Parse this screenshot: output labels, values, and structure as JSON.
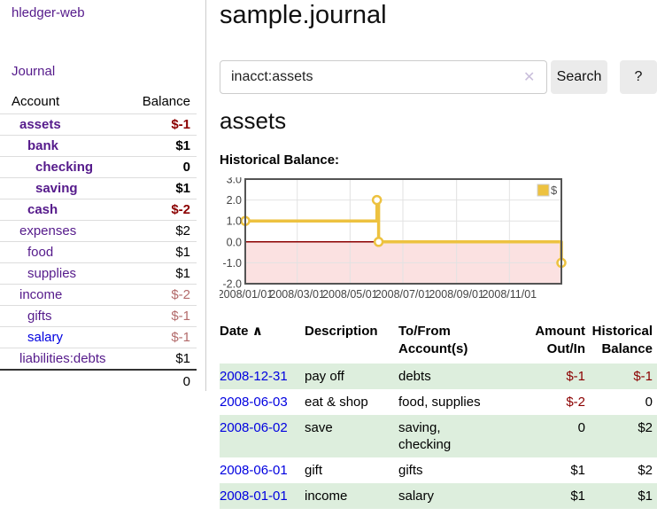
{
  "app": {
    "title": "hledger-web",
    "nav_journal": "Journal"
  },
  "sidebar": {
    "account_table": {
      "col_account": "Account",
      "col_balance": "Balance",
      "rows": [
        {
          "name": "assets",
          "depth": 1,
          "bold": true,
          "balance": "$-1",
          "neg": "strong"
        },
        {
          "name": "bank",
          "depth": 2,
          "bold": true,
          "balance": "$1"
        },
        {
          "name": "checking",
          "depth": 3,
          "bold": true,
          "balance": "0"
        },
        {
          "name": "saving",
          "depth": 3,
          "bold": true,
          "balance": "$1"
        },
        {
          "name": "cash",
          "depth": 2,
          "bold": true,
          "balance": "$-2",
          "neg": "strong"
        },
        {
          "name": "expenses",
          "depth": 1,
          "bold": false,
          "balance": "$2"
        },
        {
          "name": "food",
          "depth": 2,
          "bold": false,
          "balance": "$1"
        },
        {
          "name": "supplies",
          "depth": 2,
          "bold": false,
          "balance": "$1"
        },
        {
          "name": "income",
          "depth": 1,
          "bold": false,
          "balance": "$-2",
          "neg": "soft"
        },
        {
          "name": "gifts",
          "depth": 2,
          "bold": false,
          "balance": "$-1",
          "neg": "soft"
        },
        {
          "name": "salary",
          "depth": 2,
          "bold": false,
          "balance": "$-1",
          "neg": "soft",
          "link_color": "blue"
        },
        {
          "name": "liabilities:debts",
          "depth": 1,
          "bold": false,
          "balance": "$1"
        }
      ],
      "total": "0"
    }
  },
  "main": {
    "title": "sample.journal",
    "search": {
      "value": "inacct:assets",
      "clear_icon": "✕",
      "button": "Search",
      "help_button": "?"
    },
    "account_heading": "assets",
    "chart_label": "Historical Balance:"
  },
  "chart_data": {
    "type": "line",
    "step": true,
    "title": "Historical Balance:",
    "series": [
      {
        "name": "$",
        "color": "#edc240",
        "points": [
          [
            "2008-01-01",
            1
          ],
          [
            "2008-06-01",
            2
          ],
          [
            "2008-06-03",
            0
          ],
          [
            "2008-12-31",
            -1
          ]
        ]
      }
    ],
    "x_range": [
      "2008-01-01",
      "2008-12-31"
    ],
    "ylim": [
      -2,
      3
    ],
    "y_ticks": [
      "3.0",
      "2.0",
      "1.0",
      "0.0",
      "-1.0",
      "-2.0"
    ],
    "x_ticks": [
      "2008/01/01",
      "2008/03/01",
      "2008/05/01",
      "2008/07/01",
      "2008/09/01",
      "2008/11/01"
    ],
    "grid": true,
    "legend_position": "top-right",
    "legend_label": "$",
    "colors": {
      "line": "#edc240",
      "marker_fill": "#ffffff",
      "negative_region_fill": "#fbe1e1",
      "zero_line": "#8b0000",
      "border": "#545454",
      "gridline": "#e2e2e2",
      "tick_text": "#444444"
    }
  },
  "register": {
    "headers": [
      "Date",
      "Description",
      "To/From Account(s)",
      "Amount Out/In",
      "Historical Balance"
    ],
    "sort_caret": "∧",
    "rows": [
      {
        "date": "2008-12-31",
        "description": "pay off",
        "accounts": "debts",
        "amount": "$-1",
        "amount_neg": true,
        "balance": "$-1",
        "balance_neg": true
      },
      {
        "date": "2008-06-03",
        "description": "eat & shop",
        "accounts": "food, supplies",
        "amount": "$-2",
        "amount_neg": true,
        "balance": "0",
        "balance_neg": false
      },
      {
        "date": "2008-06-02",
        "description": "save",
        "accounts": "saving,\nchecking",
        "amount": "0",
        "amount_neg": false,
        "balance": "$2",
        "balance_neg": false
      },
      {
        "date": "2008-06-01",
        "description": "gift",
        "accounts": "gifts",
        "amount": "$1",
        "amount_neg": false,
        "balance": "$2",
        "balance_neg": false
      },
      {
        "date": "2008-01-01",
        "description": "income",
        "accounts": "salary",
        "amount": "$1",
        "amount_neg": false,
        "balance": "$1",
        "balance_neg": false
      }
    ]
  }
}
